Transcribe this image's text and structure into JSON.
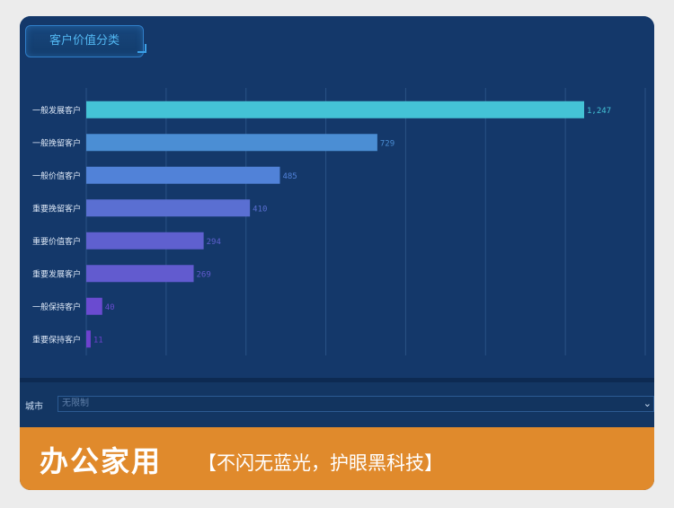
{
  "panel": {
    "title": "客户价值分类"
  },
  "chart_data": {
    "type": "bar",
    "orientation": "horizontal",
    "categories": [
      "一般发展客户",
      "一般挽留客户",
      "一般价值客户",
      "重要挽留客户",
      "重要价值客户",
      "重要发展客户",
      "一般保持客户",
      "重要保持客户"
    ],
    "values": [
      1247,
      729,
      485,
      410,
      294,
      269,
      40,
      11
    ],
    "value_labels": [
      "1,247",
      "729",
      "485",
      "410",
      "294",
      "269",
      "40",
      "11"
    ],
    "xlim": [
      0,
      1400
    ],
    "grid": true,
    "bar_colors": [
      "#44c3d6",
      "#4b8ed4",
      "#5182d8",
      "#5a6fd2",
      "#5f60cf",
      "#625bcf",
      "#6a4bd0",
      "#6e42cf"
    ]
  },
  "filter": {
    "city_label": "城市",
    "city_placeholder": "无限制"
  },
  "banner": {
    "main_text": "办公家用",
    "sub_text": "【不闪无蓝光，护眼黑科技】"
  },
  "colors": {
    "panel_bg": "#14386a",
    "grid": "#2a5285",
    "label": "#dbe6f5",
    "banner_bg": "#e08a2c"
  }
}
